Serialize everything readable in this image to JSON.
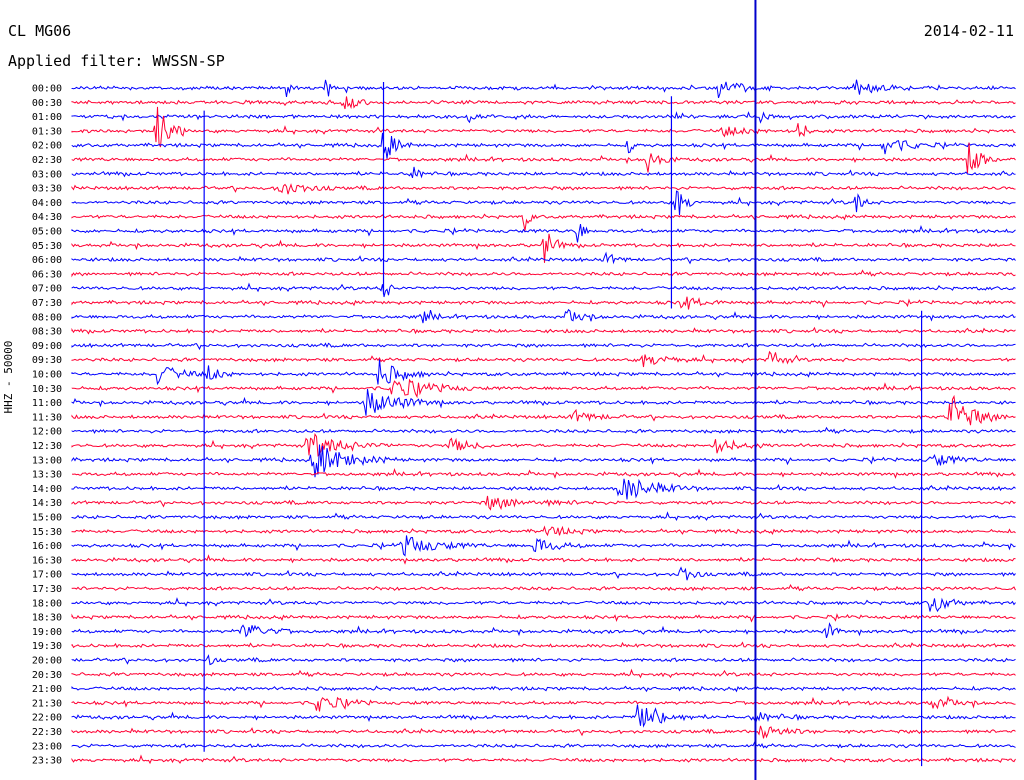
{
  "header": {
    "station": "CL MG06",
    "date": "2014-02-11",
    "filter": "Applied filter: WWSSN-SP"
  },
  "chart_data": {
    "type": "line",
    "title": "",
    "ylabel": "HHZ - 50000",
    "xlabel": "",
    "colors": {
      "even_rows": "#0000ff",
      "odd_rows": "#ff0033",
      "marker": "#0000cc"
    },
    "row_labels": [
      "00:00",
      "00:30",
      "01:00",
      "01:30",
      "02:00",
      "02:30",
      "03:00",
      "03:30",
      "04:00",
      "04:30",
      "05:00",
      "05:30",
      "06:00",
      "06:30",
      "07:00",
      "07:30",
      "08:00",
      "08:30",
      "09:00",
      "09:30",
      "10:00",
      "10:30",
      "11:00",
      "11:30",
      "12:00",
      "12:30",
      "13:00",
      "13:30",
      "14:00",
      "14:30",
      "15:00",
      "15:30",
      "16:00",
      "16:30",
      "17:00",
      "17:30",
      "18:00",
      "18:30",
      "19:00",
      "19:30",
      "20:00",
      "20:30",
      "21:00",
      "21:30",
      "22:00",
      "22:30",
      "23:00",
      "23:30"
    ],
    "marker_fraction": 0.724,
    "spikes": [
      {
        "row": 0,
        "x": 0.685,
        "amp": 10,
        "dur": 0.02
      },
      {
        "row": 0,
        "x": 0.83,
        "amp": 7,
        "dur": 0.02
      },
      {
        "row": 0,
        "x": 0.27,
        "amp": 16,
        "dur": 0.003
      },
      {
        "row": 0,
        "x": 0.227,
        "amp": 9,
        "dur": 0.003
      },
      {
        "row": 1,
        "x": 0.29,
        "amp": 7,
        "dur": 0.015
      },
      {
        "row": 2,
        "x": 0.42,
        "amp": 10,
        "dur": 0.004
      },
      {
        "row": 2,
        "x": 0.73,
        "amp": 8,
        "dur": 0.004
      },
      {
        "row": 3,
        "x": 0.09,
        "amp": 30,
        "dur": 0.01
      },
      {
        "row": 3,
        "x": 0.77,
        "amp": 12,
        "dur": 0.006
      },
      {
        "row": 3,
        "x": 0.69,
        "amp": 5,
        "dur": 0.02
      },
      {
        "row": 4,
        "x": 0.33,
        "amp": 18,
        "dur": 0.01
      },
      {
        "row": 4,
        "x": 0.86,
        "amp": 10,
        "dur": 0.02
      },
      {
        "row": 4,
        "x": 0.59,
        "amp": 8,
        "dur": 0.004
      },
      {
        "row": 5,
        "x": 0.61,
        "amp": 14,
        "dur": 0.01
      },
      {
        "row": 5,
        "x": 0.95,
        "amp": 22,
        "dur": 0.01
      },
      {
        "row": 6,
        "x": 0.36,
        "amp": 8,
        "dur": 0.008
      },
      {
        "row": 7,
        "x": 0.22,
        "amp": 9,
        "dur": 0.02
      },
      {
        "row": 8,
        "x": 0.64,
        "amp": 20,
        "dur": 0.008
      },
      {
        "row": 8,
        "x": 0.83,
        "amp": 14,
        "dur": 0.006
      },
      {
        "row": 9,
        "x": 0.48,
        "amp": 14,
        "dur": 0.004
      },
      {
        "row": 10,
        "x": 0.535,
        "amp": 22,
        "dur": 0.004
      },
      {
        "row": 11,
        "x": 0.5,
        "amp": 22,
        "dur": 0.008
      },
      {
        "row": 12,
        "x": 0.565,
        "amp": 6,
        "dur": 0.01
      },
      {
        "row": 14,
        "x": 0.33,
        "amp": 20,
        "dur": 0.004
      },
      {
        "row": 15,
        "x": 0.645,
        "amp": 6,
        "dur": 0.02
      },
      {
        "row": 16,
        "x": 0.37,
        "amp": 6,
        "dur": 0.01
      },
      {
        "row": 16,
        "x": 0.525,
        "amp": 7,
        "dur": 0.015
      },
      {
        "row": 19,
        "x": 0.605,
        "amp": 7,
        "dur": 0.02
      },
      {
        "row": 19,
        "x": 0.74,
        "amp": 12,
        "dur": 0.01
      },
      {
        "row": 20,
        "x": 0.09,
        "amp": 10,
        "dur": 0.02
      },
      {
        "row": 20,
        "x": 0.145,
        "amp": 9,
        "dur": 0.01
      },
      {
        "row": 20,
        "x": 0.325,
        "amp": 14,
        "dur": 0.02
      },
      {
        "row": 21,
        "x": 0.34,
        "amp": 12,
        "dur": 0.03
      },
      {
        "row": 22,
        "x": 0.31,
        "amp": 14,
        "dur": 0.03
      },
      {
        "row": 23,
        "x": 0.93,
        "amp": 24,
        "dur": 0.02
      },
      {
        "row": 23,
        "x": 0.53,
        "amp": 6,
        "dur": 0.02
      },
      {
        "row": 25,
        "x": 0.25,
        "amp": 14,
        "dur": 0.03
      },
      {
        "row": 25,
        "x": 0.4,
        "amp": 7,
        "dur": 0.02
      },
      {
        "row": 25,
        "x": 0.68,
        "amp": 8,
        "dur": 0.02
      },
      {
        "row": 26,
        "x": 0.255,
        "amp": 18,
        "dur": 0.03
      },
      {
        "row": 26,
        "x": 0.91,
        "amp": 7,
        "dur": 0.02
      },
      {
        "row": 28,
        "x": 0.58,
        "amp": 14,
        "dur": 0.03
      },
      {
        "row": 29,
        "x": 0.44,
        "amp": 6,
        "dur": 0.04
      },
      {
        "row": 31,
        "x": 0.5,
        "amp": 6,
        "dur": 0.02
      },
      {
        "row": 32,
        "x": 0.35,
        "amp": 10,
        "dur": 0.03
      },
      {
        "row": 32,
        "x": 0.49,
        "amp": 8,
        "dur": 0.02
      },
      {
        "row": 34,
        "x": 0.645,
        "amp": 10,
        "dur": 0.01
      },
      {
        "row": 36,
        "x": 0.91,
        "amp": 12,
        "dur": 0.015
      },
      {
        "row": 38,
        "x": 0.18,
        "amp": 10,
        "dur": 0.02
      },
      {
        "row": 38,
        "x": 0.8,
        "amp": 10,
        "dur": 0.006
      },
      {
        "row": 40,
        "x": 0.145,
        "amp": 6,
        "dur": 0.004
      },
      {
        "row": 43,
        "x": 0.26,
        "amp": 10,
        "dur": 0.02
      },
      {
        "row": 43,
        "x": 0.91,
        "amp": 6,
        "dur": 0.02
      },
      {
        "row": 44,
        "x": 0.6,
        "amp": 18,
        "dur": 0.02
      },
      {
        "row": 44,
        "x": 0.72,
        "amp": 6,
        "dur": 0.02
      },
      {
        "row": 45,
        "x": 0.73,
        "amp": 8,
        "dur": 0.02
      }
    ],
    "long_lines": [
      {
        "x": 0.33,
        "row_from": 0,
        "row_to": 14
      },
      {
        "x": 0.14,
        "row_from": 2,
        "row_to": 46
      },
      {
        "x": 0.635,
        "row_from": 1,
        "row_to": 15
      },
      {
        "x": 0.9,
        "row_from": 16,
        "row_to": 47
      }
    ]
  }
}
